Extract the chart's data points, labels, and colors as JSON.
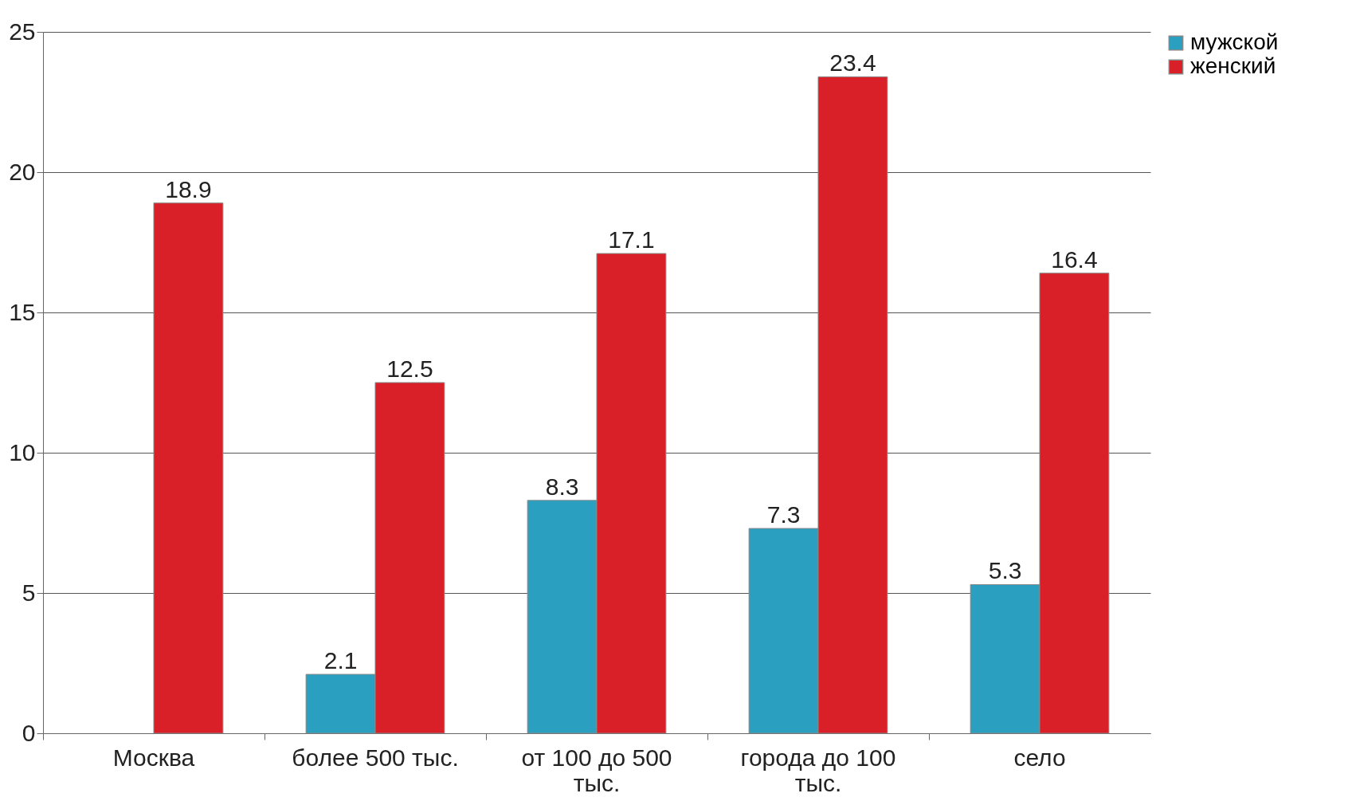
{
  "chart_data": {
    "type": "bar",
    "categories": [
      "Москва",
      "более 500 тыс.",
      "от 100 до 500 тыс.",
      "города до 100 тыс.",
      "село"
    ],
    "series": [
      {
        "name": "мужской",
        "color": "#2b9fbf",
        "values": [
          null,
          2.1,
          8.3,
          7.3,
          5.3
        ]
      },
      {
        "name": "женский",
        "color": "#d91f27",
        "values": [
          18.9,
          12.5,
          17.1,
          23.4,
          16.4
        ]
      }
    ],
    "ylim": [
      0,
      25
    ],
    "yticks": [
      0,
      5,
      10,
      15,
      20,
      25
    ],
    "grid": "y",
    "legend": "right",
    "data_labels": true
  }
}
